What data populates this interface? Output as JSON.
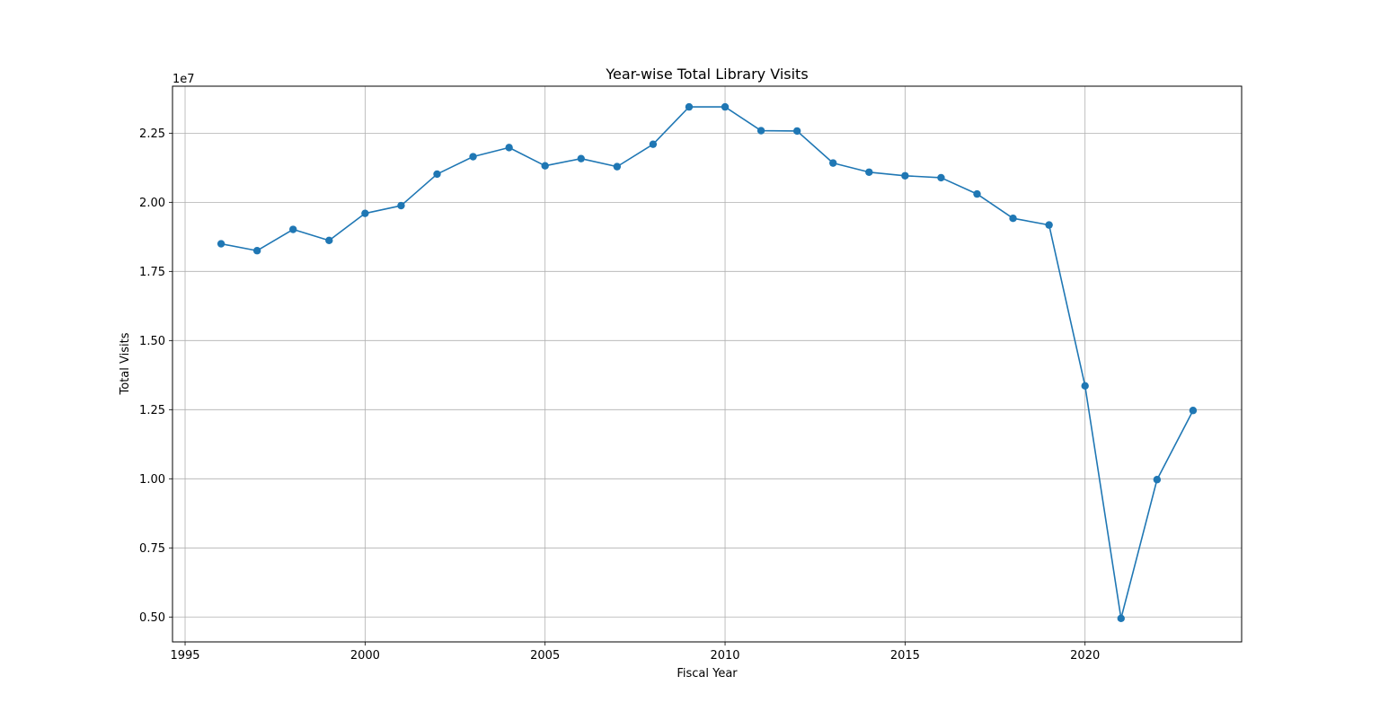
{
  "chart_data": {
    "type": "line",
    "title": "Year-wise Total Library Visits",
    "xlabel": "Fiscal Year",
    "ylabel": "Total Visits",
    "y_offset_label": "1e7",
    "y_multiplier": 10000000,
    "xlim": [
      1994.65,
      2024.35
    ],
    "ylim": [
      4100000,
      24200000
    ],
    "xticks": [
      1995,
      2000,
      2005,
      2010,
      2015,
      2020
    ],
    "xtick_labels": [
      "1995",
      "2000",
      "2005",
      "2010",
      "2015",
      "2020"
    ],
    "yticks": [
      5000000,
      7500000,
      10000000,
      12500000,
      15000000,
      17500000,
      20000000,
      22500000
    ],
    "ytick_labels": [
      "0.50",
      "0.75",
      "1.00",
      "1.25",
      "1.50",
      "1.75",
      "2.00",
      "2.25"
    ],
    "grid": true,
    "line_color": "#1f77b4",
    "series": [
      {
        "x": [
          1996,
          1997,
          1998,
          1999,
          2000,
          2001,
          2002,
          2003,
          2004,
          2005,
          2006,
          2007,
          2008,
          2009,
          2010,
          2011,
          2012,
          2013,
          2014,
          2015,
          2016,
          2017,
          2018,
          2019,
          2020,
          2021,
          2022,
          2023
        ],
        "y": [
          18500000,
          18250000,
          19020000,
          18620000,
          19600000,
          19880000,
          21020000,
          21650000,
          21980000,
          21320000,
          21580000,
          21290000,
          22100000,
          23450000,
          23450000,
          22590000,
          22580000,
          21420000,
          21090000,
          20960000,
          20890000,
          20300000,
          19420000,
          19180000,
          13360000,
          4950000,
          9970000,
          12470000
        ]
      }
    ]
  }
}
